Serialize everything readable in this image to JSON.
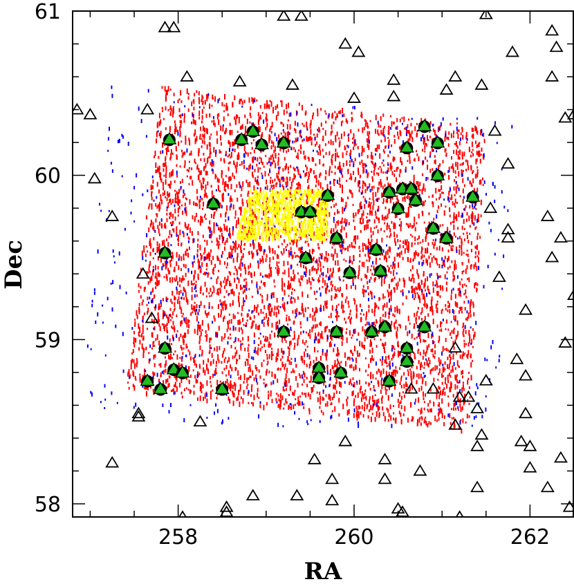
{
  "chart_data": {
    "type": "scatter",
    "title": "",
    "xlabel": "RA",
    "ylabel": "Dec",
    "xlim": [
      256.8,
      262.5
    ],
    "ylim": [
      57.92,
      61.0
    ],
    "x_ticks": [
      258,
      260,
      262
    ],
    "y_ticks": [
      58,
      59,
      60,
      61
    ],
    "grid": false,
    "legend": "none",
    "colors": {
      "red_field": "#ff0000",
      "blue_field": "#0000ff",
      "yellow_patch": "#ffff00",
      "green_marker": "#22bb22",
      "outline": "#000000"
    },
    "regions": [
      {
        "color": "#ff0000",
        "shape": "dense-dots",
        "corners": [
          [
            257.4,
            58.7
          ],
          [
            257.8,
            60.55
          ],
          [
            261.5,
            60.3
          ],
          [
            261.3,
            58.45
          ]
        ]
      },
      {
        "color": "#0000ff",
        "shape": "sparse-dots",
        "corners": [
          [
            256.9,
            58.55
          ],
          [
            257.2,
            60.55
          ],
          [
            261.8,
            60.35
          ],
          [
            261.6,
            58.4
          ]
        ]
      },
      {
        "color": "#ffff00",
        "shape": "dense-dots",
        "corners": [
          [
            258.65,
            59.62
          ],
          [
            258.8,
            59.92
          ],
          [
            259.7,
            59.92
          ],
          [
            259.7,
            59.62
          ]
        ]
      }
    ],
    "series": [
      {
        "marker": "green-filled-triangle",
        "points": [
          [
            257.9,
            60.22
          ],
          [
            258.72,
            60.22
          ],
          [
            258.85,
            60.27
          ],
          [
            258.95,
            60.19
          ],
          [
            259.2,
            60.2
          ],
          [
            260.8,
            60.3
          ],
          [
            260.95,
            60.2
          ],
          [
            260.6,
            60.17
          ],
          [
            260.95,
            60.0
          ],
          [
            261.35,
            59.87
          ],
          [
            259.7,
            59.88
          ],
          [
            259.4,
            59.78
          ],
          [
            259.5,
            59.78
          ],
          [
            258.4,
            59.83
          ],
          [
            260.4,
            59.9
          ],
          [
            260.55,
            59.92
          ],
          [
            260.65,
            59.92
          ],
          [
            260.5,
            59.8
          ],
          [
            260.7,
            59.85
          ],
          [
            260.9,
            59.68
          ],
          [
            261.05,
            59.62
          ],
          [
            259.8,
            59.62
          ],
          [
            260.25,
            59.55
          ],
          [
            259.45,
            59.5
          ],
          [
            259.95,
            59.41
          ],
          [
            260.3,
            59.42
          ],
          [
            257.85,
            59.53
          ],
          [
            259.2,
            59.05
          ],
          [
            259.8,
            59.05
          ],
          [
            260.2,
            59.05
          ],
          [
            260.35,
            59.08
          ],
          [
            260.8,
            59.08
          ],
          [
            260.6,
            58.95
          ],
          [
            260.6,
            58.87
          ],
          [
            257.85,
            58.95
          ],
          [
            257.95,
            58.82
          ],
          [
            258.05,
            58.8
          ],
          [
            257.65,
            58.75
          ],
          [
            257.8,
            58.7
          ],
          [
            258.5,
            58.7
          ],
          [
            259.6,
            58.83
          ],
          [
            259.6,
            58.77
          ],
          [
            259.85,
            58.8
          ],
          [
            260.4,
            58.75
          ]
        ]
      },
      {
        "marker": "open-triangle",
        "points": [
          [
            257.85,
            60.9
          ],
          [
            257.95,
            60.9
          ],
          [
            259.2,
            60.97
          ],
          [
            259.4,
            60.97
          ],
          [
            259.9,
            60.8
          ],
          [
            260.05,
            60.75
          ],
          [
            258.7,
            60.57
          ],
          [
            258.1,
            60.6
          ],
          [
            259.3,
            60.55
          ],
          [
            260.0,
            60.47
          ],
          [
            260.45,
            60.48
          ],
          [
            260.45,
            60.58
          ],
          [
            261.05,
            60.52
          ],
          [
            261.15,
            60.6
          ],
          [
            261.45,
            60.55
          ],
          [
            256.85,
            60.4
          ],
          [
            257.0,
            60.37
          ],
          [
            257.65,
            60.4
          ],
          [
            257.05,
            59.98
          ],
          [
            257.25,
            59.75
          ],
          [
            257.6,
            59.4
          ],
          [
            257.7,
            59.13
          ],
          [
            261.6,
            60.27
          ],
          [
            261.75,
            60.07
          ],
          [
            261.55,
            59.8
          ],
          [
            261.75,
            59.67
          ],
          [
            261.75,
            59.62
          ],
          [
            261.65,
            59.38
          ],
          [
            261.95,
            59.18
          ],
          [
            262.2,
            59.75
          ],
          [
            262.25,
            59.5
          ],
          [
            262.35,
            59.62
          ],
          [
            262.5,
            59.27
          ],
          [
            262.4,
            58.98
          ],
          [
            261.85,
            58.88
          ],
          [
            261.95,
            58.78
          ],
          [
            261.5,
            58.75
          ],
          [
            261.95,
            58.55
          ],
          [
            261.3,
            58.65
          ],
          [
            261.2,
            58.65
          ],
          [
            261.4,
            58.58
          ],
          [
            261.45,
            58.42
          ],
          [
            261.4,
            58.35
          ],
          [
            261.9,
            58.38
          ],
          [
            262.0,
            58.35
          ],
          [
            262.35,
            58.28
          ],
          [
            262.0,
            58.22
          ],
          [
            262.2,
            58.1
          ],
          [
            261.4,
            58.1
          ],
          [
            262.45,
            57.98
          ],
          [
            261.2,
            57.92
          ],
          [
            260.5,
            57.97
          ],
          [
            260.55,
            57.95
          ],
          [
            260.75,
            58.2
          ],
          [
            260.35,
            58.27
          ],
          [
            260.35,
            58.15
          ],
          [
            260.65,
            58.7
          ],
          [
            260.9,
            58.7
          ],
          [
            261.15,
            58.95
          ],
          [
            261.15,
            58.48
          ],
          [
            259.55,
            58.27
          ],
          [
            259.75,
            58.15
          ],
          [
            259.75,
            58.02
          ],
          [
            259.9,
            58.38
          ],
          [
            258.55,
            57.98
          ],
          [
            258.55,
            57.95
          ],
          [
            258.85,
            58.05
          ],
          [
            259.35,
            58.05
          ],
          [
            258.05,
            57.92
          ],
          [
            258.25,
            58.5
          ],
          [
            257.55,
            58.55
          ],
          [
            257.55,
            58.53
          ],
          [
            257.25,
            58.25
          ],
          [
            262.25,
            60.88
          ],
          [
            262.3,
            60.78
          ],
          [
            262.25,
            60.6
          ],
          [
            261.8,
            60.75
          ],
          [
            262.4,
            60.35
          ],
          [
            262.5,
            60.37
          ],
          [
            261.5,
            60.98
          ]
        ]
      }
    ]
  }
}
